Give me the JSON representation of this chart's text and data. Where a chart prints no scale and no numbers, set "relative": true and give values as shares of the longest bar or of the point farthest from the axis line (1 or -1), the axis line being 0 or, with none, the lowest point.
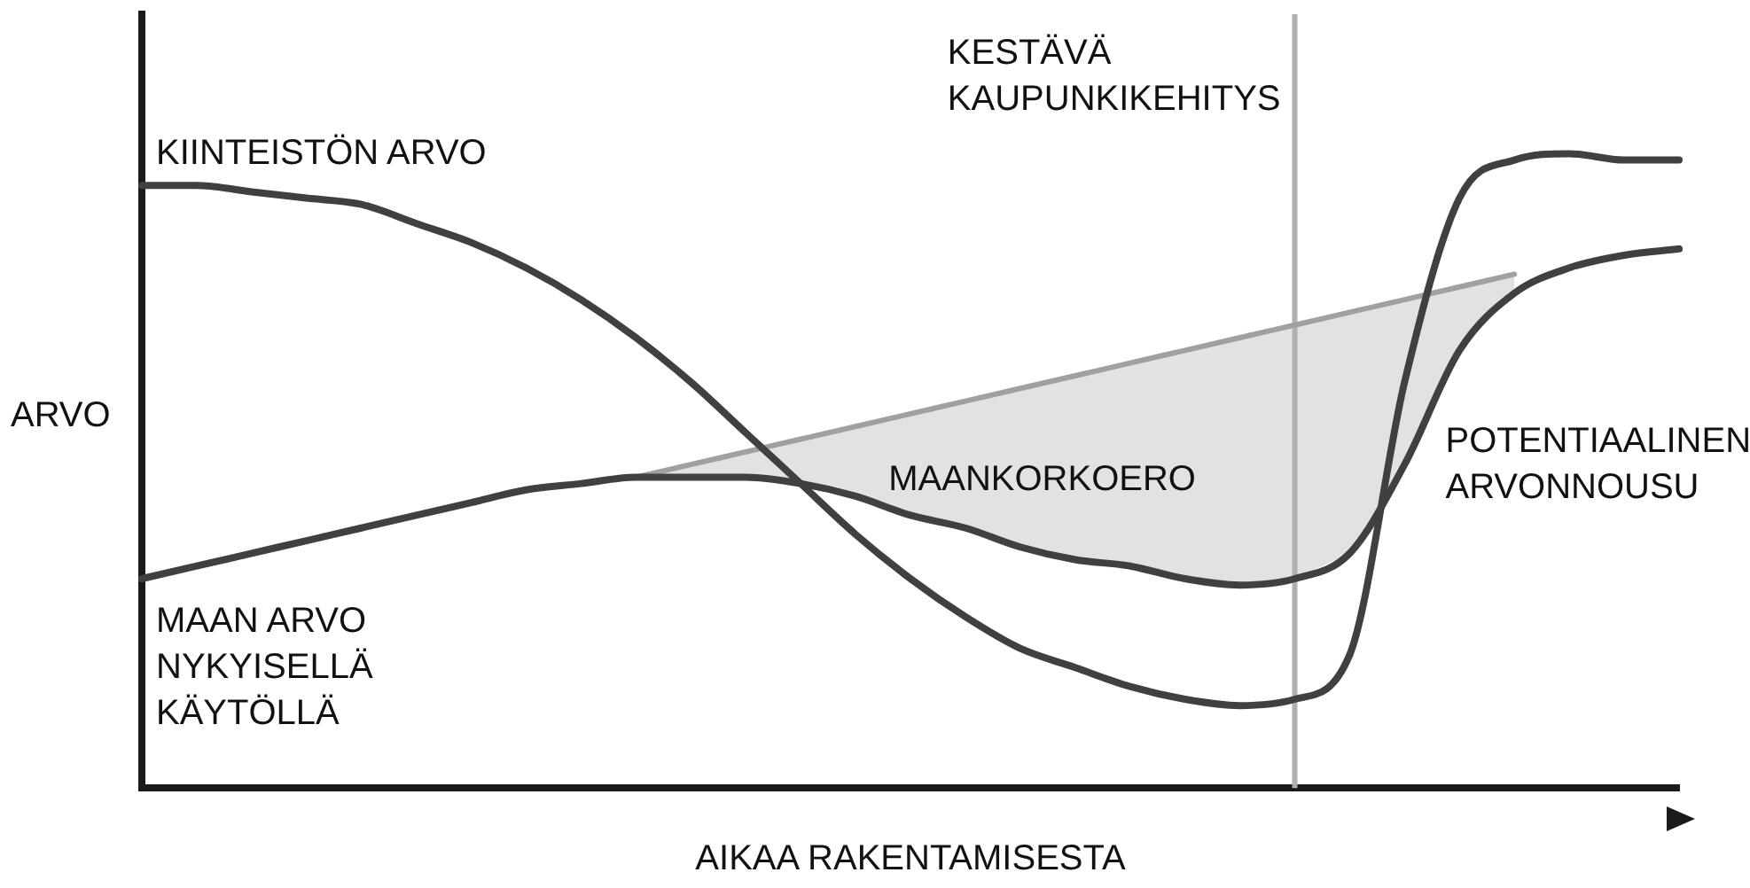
{
  "chart_data": {
    "type": "line",
    "relative": true,
    "xlabel": "AIKAA RAKENTAMISESTA",
    "ylabel": "ARVO",
    "legend": false,
    "categories": [
      null,
      null,
      null,
      null,
      null,
      null,
      null,
      null,
      null,
      null,
      null,
      null,
      null,
      null,
      null,
      null,
      null,
      null,
      null,
      null,
      null,
      null,
      null,
      null,
      null,
      null,
      null,
      null,
      null
    ],
    "series": [
      {
        "name": "KIINTEISTÖN ARVO",
        "color": "#404040",
        "values": [
          0.95,
          0.95,
          0.94,
          0.93,
          0.92,
          0.89,
          0.86,
          0.82,
          0.77,
          0.71,
          0.64,
          0.56,
          0.48,
          0.4,
          0.33,
          0.27,
          0.22,
          0.19,
          0.16,
          0.14,
          0.13,
          0.14,
          0.21,
          0.64,
          0.93,
          0.99,
          1.0,
          0.99,
          0.99
        ]
      },
      {
        "name": "MAAN ARVO NYKYISELLÄ KÄYTÖLLÄ",
        "color": "#404040",
        "values": [
          0.33,
          0.35,
          0.37,
          0.39,
          0.41,
          0.43,
          0.45,
          0.47,
          0.48,
          0.49,
          0.49,
          0.49,
          0.48,
          0.46,
          0.43,
          0.41,
          0.38,
          0.36,
          0.35,
          0.33,
          0.32,
          0.33,
          0.37,
          0.51,
          0.69,
          0.78,
          0.82,
          0.84,
          0.85
        ]
      },
      {
        "color": "#a0a0a0",
        "values": [
          null,
          null,
          null,
          null,
          null,
          null,
          null,
          null,
          null,
          0.49,
          0.51,
          0.53,
          0.55,
          0.57,
          0.59,
          0.61,
          0.63,
          0.65,
          0.67,
          0.69,
          0.71,
          0.73,
          0.75,
          0.77,
          0.79,
          0.81,
          null,
          null,
          null
        ],
        "lower": [
          null,
          null,
          null,
          null,
          null,
          null,
          null,
          null,
          null,
          0.49,
          0.49,
          0.49,
          0.48,
          0.46,
          0.43,
          0.41,
          0.38,
          0.36,
          0.35,
          0.33,
          0.32,
          0.33,
          0.37,
          0.51,
          0.69,
          0.78,
          null,
          null,
          null
        ],
        "upper": [
          null,
          null,
          null,
          null,
          null,
          null,
          null,
          null,
          null,
          0.49,
          0.51,
          0.53,
          0.55,
          0.57,
          0.59,
          0.61,
          0.63,
          0.65,
          0.67,
          0.69,
          0.71,
          0.73,
          0.75,
          0.77,
          0.79,
          0.81,
          null,
          null,
          null
        ]
      }
    ],
    "annotations": [
      "KESTÄVÄ KAUPUNKIKEHITYS",
      "MAANKORKOERO",
      "POTENTIAALINEN ARVONNOUSU"
    ]
  }
}
